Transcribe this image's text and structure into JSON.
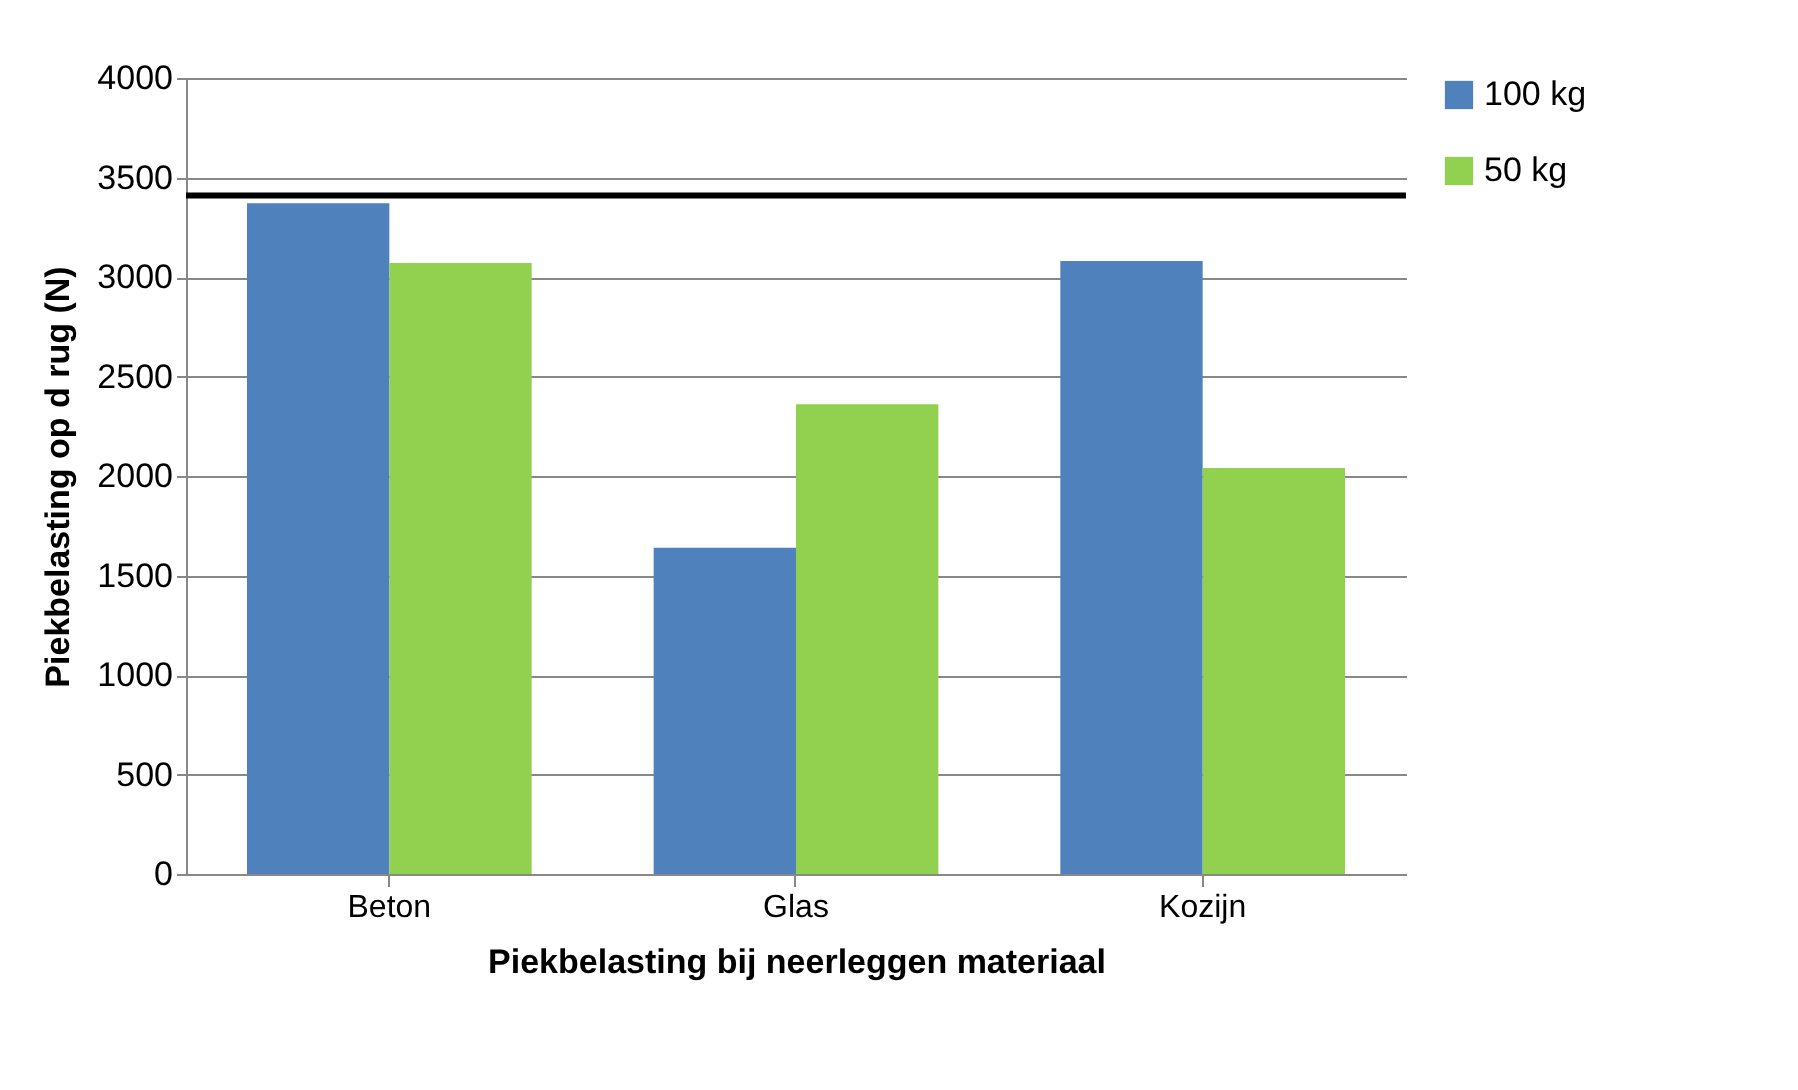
{
  "chart_data": {
    "type": "bar",
    "xlabel": "Piekbelasting bij neerleggen materiaal",
    "ylabel": "Piekbelasting op d rug (N)",
    "categories": [
      "Beton",
      "Glas",
      "Kozijn"
    ],
    "series": [
      {
        "name": "100 kg",
        "color": "#4f81bd",
        "values": [
          3370,
          1640,
          3080
        ]
      },
      {
        "name": "50 kg",
        "color": "#92d050",
        "values": [
          3070,
          2360,
          2040
        ]
      }
    ],
    "ylim": [
      0,
      4000
    ],
    "yticks": [
      0,
      500,
      1000,
      1500,
      2000,
      2500,
      3000,
      3500,
      4000
    ],
    "grid": "y",
    "legend": "right",
    "ref_lines": [
      {
        "axis": "y",
        "value": 3410,
        "label": null,
        "color": "#000000"
      }
    ]
  }
}
